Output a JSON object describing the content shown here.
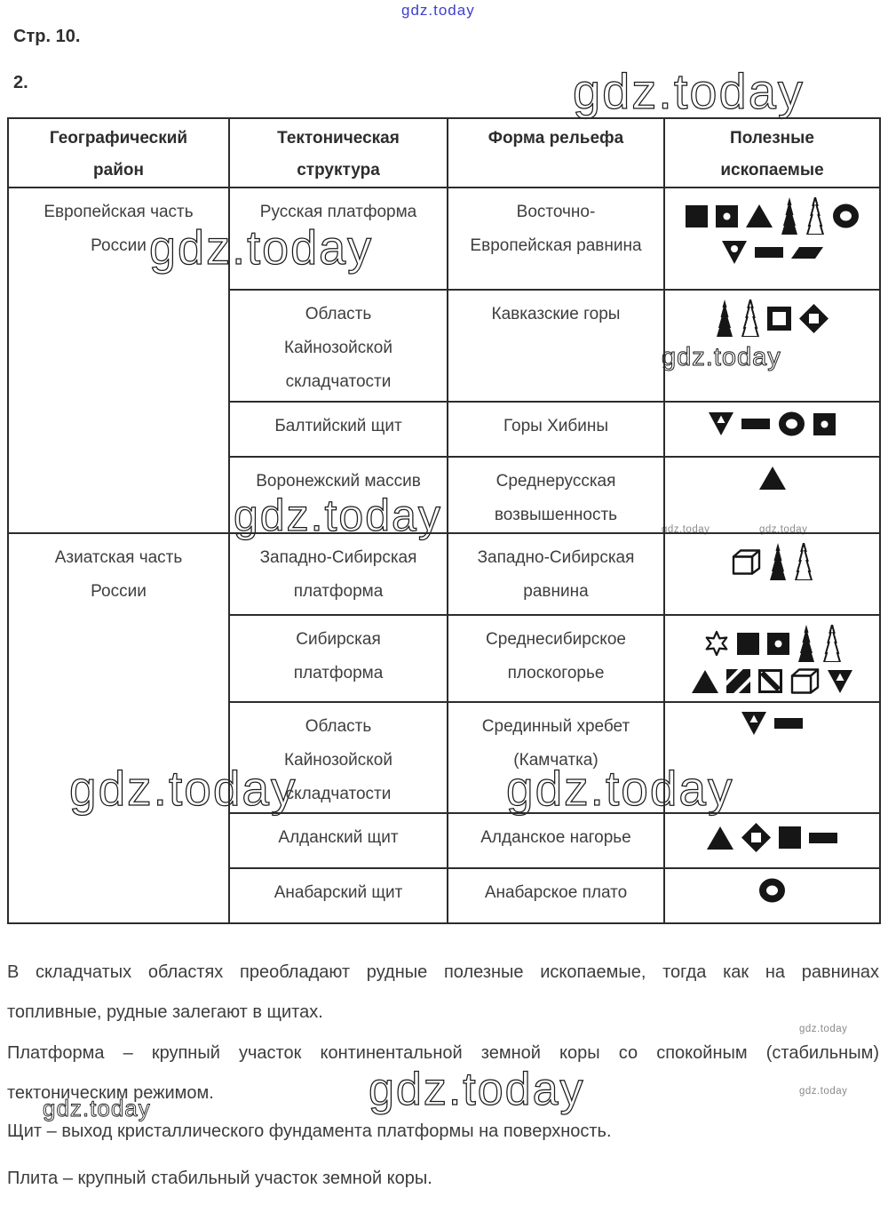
{
  "page": {
    "label": "Стр. 10.",
    "task": "2."
  },
  "watermark": {
    "text": "gdz.today",
    "blue_color": "#3d3dce"
  },
  "table": {
    "headers": {
      "geo": "Географический\nрайон",
      "tect": "Тектоническая\nструктура",
      "relief": "Форма рельефа",
      "minerals": "Полезные\nископаемые"
    },
    "regions": [
      {
        "name": "Европейская часть\nРоссии"
      },
      {
        "name": "Азиатская часть\nРоссии"
      }
    ],
    "rows": [
      {
        "structure": "Русская платформа",
        "relief": "Восточно-\nЕвропейская равнина",
        "minerals": [
          [
            "square-filled",
            "square-dot",
            "triangle-filled",
            "spire-filled",
            "spire-outline",
            "ring"
          ],
          [
            "triangle-down-dot",
            "bar",
            "parallelogram"
          ]
        ]
      },
      {
        "structure": "Область\nКайнозойской\nскладчатости",
        "relief": "Кавказские горы",
        "minerals": [
          [
            "spire-filled",
            "spire-outline",
            "square-outline",
            "diamond-square-hole"
          ]
        ]
      },
      {
        "structure": "Балтийский щит",
        "relief": "Горы Хибины",
        "minerals": [
          [
            "triangle-down-hole",
            "bar",
            "ring",
            "square-dot"
          ]
        ]
      },
      {
        "structure": "Воронежский массив",
        "relief": "Среднерусская\nвозвышенность",
        "minerals": [
          [
            "triangle-filled"
          ]
        ]
      },
      {
        "structure": "Западно-Сибирская\nплатформа",
        "relief": "Западно-Сибирская\nравнина",
        "minerals": [
          [
            "cube",
            "spire-filled",
            "spire-outline"
          ]
        ]
      },
      {
        "structure": "Сибирская\nплатформа",
        "relief": "Среднесибирское\nплоскогорье",
        "minerals": [
          [
            "star6-outline",
            "square-filled",
            "square-dot",
            "spire-filled",
            "spire-outline"
          ],
          [
            "triangle-filled",
            "square-hatched",
            "square-diagonal",
            "cube",
            "triangle-down-hole"
          ]
        ]
      },
      {
        "structure": "Область\nКайнозойской\nскладчатости",
        "relief": "Срединный хребет\n(Камчатка)",
        "minerals": [
          [
            "triangle-down-hole",
            "bar"
          ]
        ]
      },
      {
        "structure": "Алданский щит",
        "relief": "Алданское нагорье",
        "minerals": [
          [
            "triangle-filled",
            "diamond-square-hole",
            "square-filled",
            "bar"
          ]
        ]
      },
      {
        "structure": "Анабарский щит",
        "relief": "Анабарское плато",
        "minerals": [
          [
            "ring"
          ]
        ]
      }
    ]
  },
  "notes": {
    "p1_line1": "В складчатых областях преобладают рудные полезные ископаемые, тогда как на равнинах",
    "p1_line2": "топливные, рудные залегают в щитах.",
    "p2_line1": "Платформа – крупный участок континентальной земной коры со спокойным (стабильным)",
    "p2_line2": "тектоническим режимом.",
    "p3": "Щит – выход кристаллического фундамента платформы на поверхность.",
    "p4": "Плита – крупный стабильный участок земной коры."
  }
}
